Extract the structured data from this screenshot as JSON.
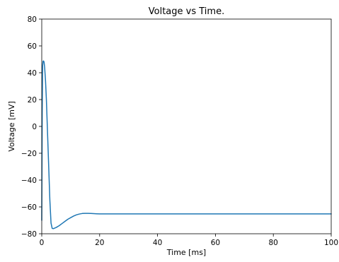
{
  "chart_data": {
    "type": "line",
    "title": "Voltage vs Time.",
    "xlabel": "Time [ms]",
    "ylabel": "Voltage [mV]",
    "xlim": [
      0,
      100
    ],
    "ylim": [
      -80,
      80
    ],
    "xticks": [
      0,
      20,
      40,
      60,
      80,
      100
    ],
    "yticks": [
      -80,
      -60,
      -40,
      -20,
      0,
      20,
      40,
      60,
      80
    ],
    "grid": false,
    "series": [
      {
        "color": "#1f77b4",
        "x": [
          0,
          0.15,
          0.3,
          0.45,
          0.6,
          0.8,
          1.0,
          1.3,
          1.6,
          2.0,
          2.4,
          2.8,
          3.2,
          3.6,
          4.0,
          5.0,
          6.0,
          7.0,
          8.0,
          9.0,
          10.0,
          11.0,
          12.0,
          13.0,
          14.0,
          15.0,
          16.0,
          17.0,
          18.0,
          19.0,
          20.0,
          21.0,
          22.0,
          23.0,
          24.0,
          25.0,
          27.0,
          30.0,
          35.0,
          40.0,
          50.0,
          60.0,
          70.0,
          80.0,
          90.0,
          100.0
        ],
        "y": [
          -70,
          10,
          45,
          48.5,
          48.8,
          48,
          44,
          34,
          20,
          -5,
          -30,
          -55,
          -72,
          -76,
          -76.2,
          -75.3,
          -74,
          -72.4,
          -70.8,
          -69.2,
          -68,
          -66.8,
          -65.9,
          -65.3,
          -64.9,
          -64.8,
          -64.8,
          -64.9,
          -65,
          -65.1,
          -65.2,
          -65.2,
          -65.2,
          -65.2,
          -65.2,
          -65.2,
          -65.2,
          -65.2,
          -65.2,
          -65.2,
          -65.2,
          -65.2,
          -65.2,
          -65.2,
          -65.2,
          -65.2
        ]
      }
    ]
  }
}
